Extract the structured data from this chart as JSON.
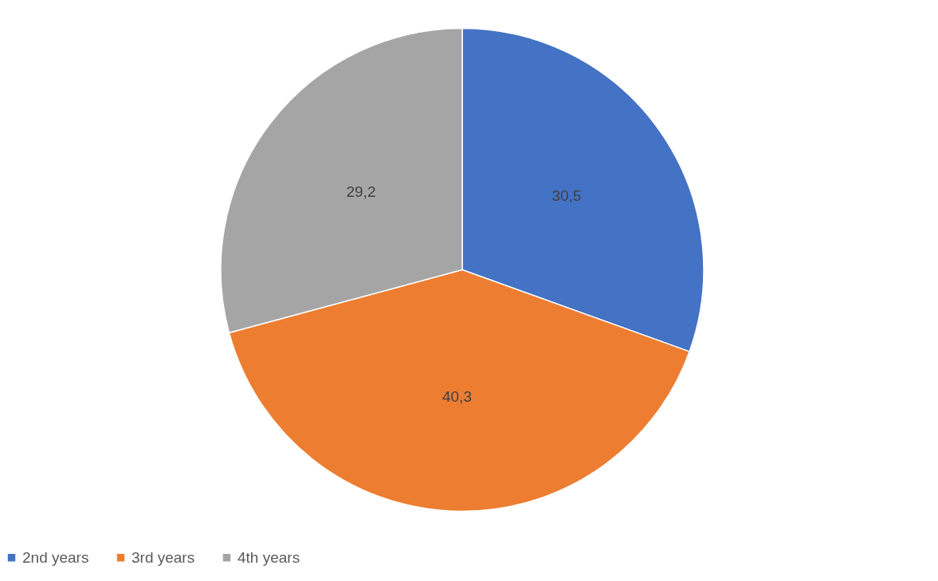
{
  "chart_data": {
    "type": "pie",
    "categories": [
      "2nd years",
      "3rd years",
      "4th years"
    ],
    "values": [
      30.5,
      40.3,
      29.2
    ],
    "colors": [
      "#4472c4",
      "#ed7d31",
      "#a5a5a5"
    ],
    "value_labels": [
      "30,5",
      "40,3",
      "29,2"
    ],
    "legend": "bottom"
  }
}
